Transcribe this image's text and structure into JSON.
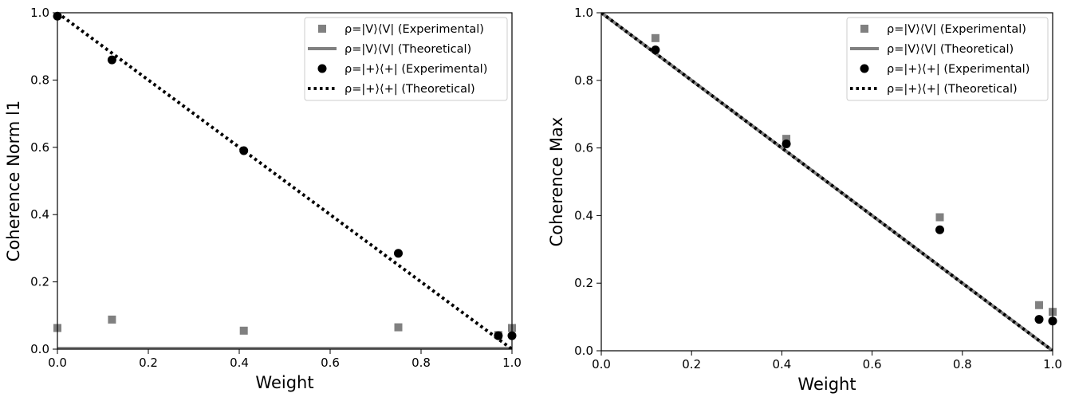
{
  "chart_data": [
    {
      "type": "scatter",
      "title": "",
      "xlabel": "Weight",
      "ylabel": "Coherence Norm l1",
      "xlim": [
        0,
        1
      ],
      "ylim": [
        0,
        1
      ],
      "xticks": [
        "0.0",
        "0.2",
        "0.4",
        "0.6",
        "0.8",
        "1.0"
      ],
      "yticks": [
        "0.0",
        "0.2",
        "0.4",
        "0.6",
        "0.8",
        "1.0"
      ],
      "grid": false,
      "legend_position": "top-right",
      "series": [
        {
          "name": "ρ=|V⟩⟨V| (Experimental)",
          "kind": "scatter",
          "marker": "square",
          "color": "#808080",
          "x": [
            0.0,
            0.12,
            0.41,
            0.75,
            0.97,
            1.0
          ],
          "y": [
            0.063,
            0.088,
            0.055,
            0.065,
            0.042,
            0.063
          ]
        },
        {
          "name": "ρ=|V⟩⟨V| (Theoretical)",
          "kind": "line",
          "style": "solid",
          "color": "#808080",
          "x": [
            0.0,
            1.0
          ],
          "y": [
            0.002,
            0.002
          ]
        },
        {
          "name": "ρ=|+⟩⟨+| (Experimental)",
          "kind": "scatter",
          "marker": "circle",
          "color": "#000000",
          "x": [
            0.0,
            0.12,
            0.41,
            0.75,
            0.97,
            1.0
          ],
          "y": [
            0.99,
            0.86,
            0.59,
            0.285,
            0.04,
            0.04
          ]
        },
        {
          "name": "ρ=|+⟩⟨+| (Theoretical)",
          "kind": "line",
          "style": "dotted",
          "color": "#000000",
          "x": [
            0.0,
            1.0
          ],
          "y": [
            1.0,
            0.0
          ]
        }
      ]
    },
    {
      "type": "scatter",
      "title": "",
      "xlabel": "Weight",
      "ylabel": "Coherence Max",
      "xlim": [
        0,
        1
      ],
      "ylim": [
        0,
        1
      ],
      "xticks": [
        "0.0",
        "0.2",
        "0.4",
        "0.6",
        "0.8",
        "1.0"
      ],
      "yticks": [
        "0.0",
        "0.2",
        "0.4",
        "0.6",
        "0.8",
        "1.0"
      ],
      "grid": false,
      "legend_position": "top-right",
      "series": [
        {
          "name": "ρ=|V⟩⟨V| (Experimental)",
          "kind": "scatter",
          "marker": "square",
          "color": "#808080",
          "x": [
            0.12,
            0.41,
            0.75,
            0.97,
            1.0
          ],
          "y": [
            0.925,
            0.627,
            0.395,
            0.135,
            0.115
          ]
        },
        {
          "name": "ρ=|V⟩⟨V| (Theoretical)",
          "kind": "line",
          "style": "solid",
          "color": "#808080",
          "x": [
            0.0,
            1.0
          ],
          "y": [
            1.0,
            0.0
          ]
        },
        {
          "name": "ρ=|+⟩⟨+| (Experimental)",
          "kind": "scatter",
          "marker": "circle",
          "color": "#000000",
          "x": [
            0.12,
            0.41,
            0.75,
            0.97,
            1.0
          ],
          "y": [
            0.89,
            0.612,
            0.358,
            0.093,
            0.088
          ]
        },
        {
          "name": "ρ=|+⟩⟨+| (Theoretical)",
          "kind": "line",
          "style": "dotted",
          "color": "#000000",
          "x": [
            0.0,
            1.0
          ],
          "y": [
            1.0,
            0.0
          ]
        }
      ]
    }
  ]
}
